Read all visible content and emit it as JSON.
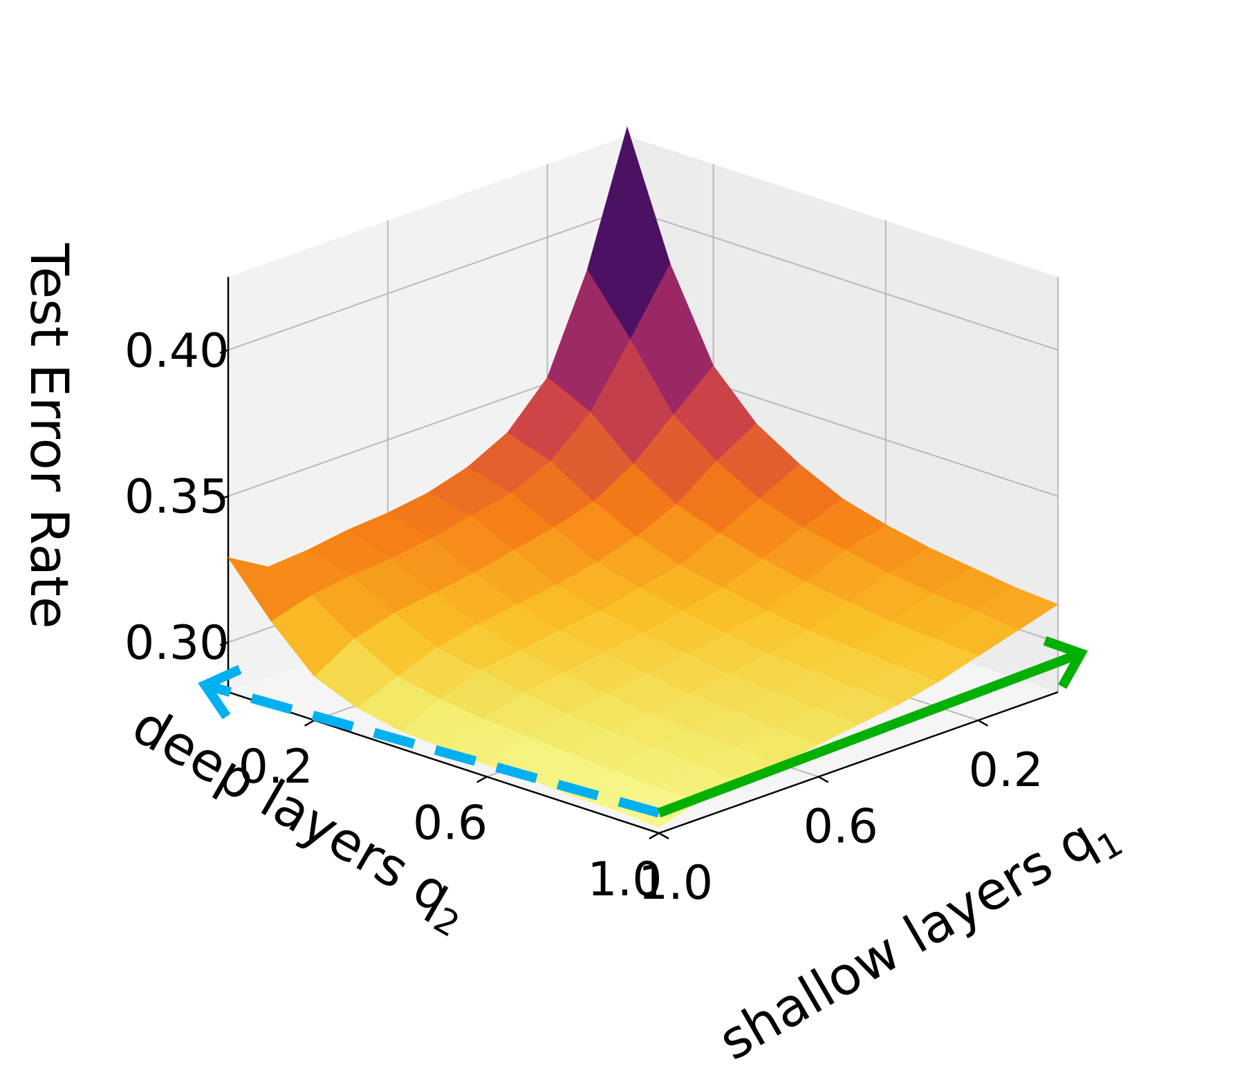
{
  "chart_data": {
    "type": "surface",
    "xlabel": "shallow layers q",
    "xlabel_sub": "1",
    "ylabel": "deep layers q",
    "ylabel_sub": "2",
    "zlabel": "Test Error Rate",
    "x_ticks": [
      "0.2",
      "0.6",
      "1.0"
    ],
    "y_ticks": [
      "0.2",
      "0.6",
      "1.0"
    ],
    "z_ticks": [
      "0.30",
      "0.35",
      "0.40"
    ],
    "grid": true,
    "colormap": "inferno",
    "q_values": [
      0.0,
      0.1,
      0.2,
      0.3,
      0.4,
      0.5,
      0.6,
      0.7,
      0.8,
      0.9,
      1.0
    ],
    "z_range": [
      0.283,
      0.425
    ],
    "note_axes": "rows index deep layers q2 (0.0 to 1.0), columns index shallow layers q1 (0.0 to 1.0)",
    "error_rate": [
      [
        0.428,
        0.384,
        0.352,
        0.338,
        0.331,
        0.327,
        0.325,
        0.324,
        0.322,
        0.321,
        0.329
      ],
      [
        0.386,
        0.365,
        0.345,
        0.333,
        0.327,
        0.324,
        0.321,
        0.319,
        0.318,
        0.316,
        0.312
      ],
      [
        0.356,
        0.344,
        0.332,
        0.324,
        0.32,
        0.317,
        0.314,
        0.312,
        0.31,
        0.306,
        0.298
      ],
      [
        0.341,
        0.333,
        0.323,
        0.317,
        0.313,
        0.31,
        0.308,
        0.306,
        0.303,
        0.298,
        0.292
      ],
      [
        0.332,
        0.325,
        0.318,
        0.312,
        0.309,
        0.306,
        0.304,
        0.302,
        0.3,
        0.295,
        0.289
      ],
      [
        0.325,
        0.32,
        0.314,
        0.309,
        0.306,
        0.303,
        0.301,
        0.299,
        0.297,
        0.293,
        0.288
      ],
      [
        0.321,
        0.317,
        0.311,
        0.306,
        0.303,
        0.301,
        0.299,
        0.297,
        0.295,
        0.292,
        0.287
      ],
      [
        0.318,
        0.314,
        0.309,
        0.304,
        0.301,
        0.299,
        0.297,
        0.295,
        0.294,
        0.291,
        0.287
      ],
      [
        0.316,
        0.312,
        0.307,
        0.303,
        0.3,
        0.298,
        0.296,
        0.294,
        0.293,
        0.29,
        0.286
      ],
      [
        0.314,
        0.311,
        0.306,
        0.302,
        0.299,
        0.297,
        0.295,
        0.293,
        0.292,
        0.289,
        0.286
      ],
      [
        0.313,
        0.309,
        0.305,
        0.301,
        0.298,
        0.296,
        0.294,
        0.292,
        0.291,
        0.289,
        0.285
      ]
    ],
    "annotations": [
      {
        "name": "deep-layers-arrow",
        "style": "dashed",
        "color": "#00b0f0",
        "from": [
          1.0,
          1.0
        ],
        "to": [
          1.0,
          0.0
        ]
      },
      {
        "name": "shallow-layers-arrow",
        "style": "solid",
        "color": "#00b000",
        "from": [
          1.0,
          1.0
        ],
        "to": [
          0.0,
          1.0
        ]
      }
    ]
  }
}
